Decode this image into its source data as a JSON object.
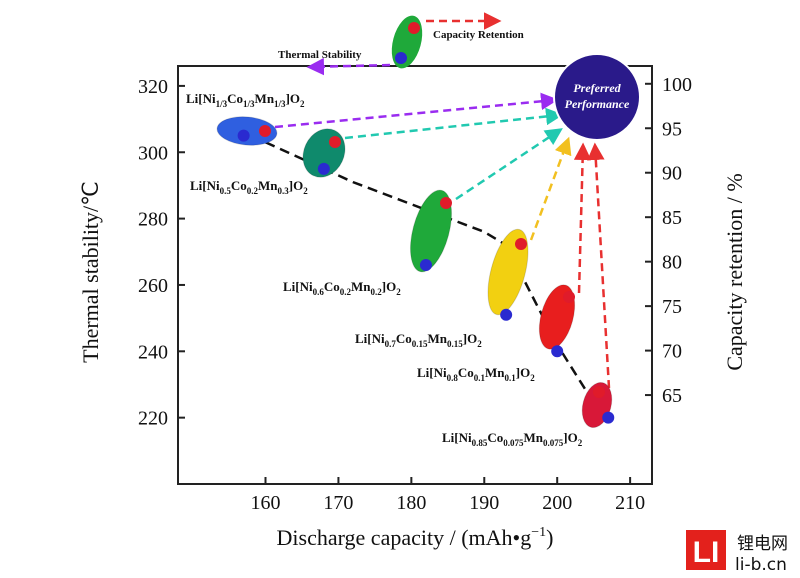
{
  "chart_data": {
    "type": "scatter",
    "title": "",
    "xlabel": "Discharge capacity / (mAh•g",
    "xlabel_sup": "−1",
    "xlabel_close": ")",
    "ylabel_left": "Thermal stability/℃",
    "ylabel_right": "Capacity retention / %",
    "xlim": [
      148,
      213
    ],
    "ylim_left": [
      200,
      326
    ],
    "ylim_right": [
      55,
      102
    ],
    "xticks": [
      160,
      170,
      180,
      190,
      200,
      210
    ],
    "yticks_left": [
      220,
      240,
      260,
      280,
      300,
      320
    ],
    "yticks_right": [
      65,
      70,
      75,
      80,
      85,
      90,
      95,
      100
    ],
    "materials": [
      {
        "parts": [
          "Li[Ni",
          "1/3",
          "Co",
          "1/3",
          "Mn",
          "1/3",
          "]O",
          "2",
          ""
        ],
        "capacity": 157,
        "thermal_stability": 305,
        "capacity_retention": 95,
        "color": "#2f5fe0"
      },
      {
        "parts": [
          "Li[Ni",
          "0.5",
          "Co",
          "0.2",
          "Mn",
          "0.3",
          "]O",
          "2",
          ""
        ],
        "capacity": 168,
        "thermal_stability": 295,
        "capacity_retention": 94,
        "color": "#0f8a6c"
      },
      {
        "parts": [
          "Li[Ni",
          "0.6",
          "Co",
          "0.2",
          "Mn",
          "0.2",
          "]O",
          "2",
          ""
        ],
        "capacity": 182,
        "thermal_stability": 266,
        "capacity_retention": 89,
        "color": "#1fa93a"
      },
      {
        "parts": [
          "Li[Ni",
          "0.7",
          "Co",
          "0.15",
          "Mn",
          "0.15",
          "]O",
          "2",
          ""
        ],
        "capacity": 193,
        "thermal_stability": 251,
        "capacity_retention": 85,
        "color": "#f2d011"
      },
      {
        "parts": [
          "Li[Ni",
          "0.8",
          "Co",
          "0.1",
          "Mn",
          "0.1",
          "]O",
          "2",
          ""
        ],
        "capacity": 200,
        "thermal_stability": 240,
        "capacity_retention": 78,
        "color": "#e81e1e"
      },
      {
        "parts": [
          "Li[Ni",
          "0.85",
          "Co",
          "0.075",
          "Mn",
          "0.075",
          "]O",
          "2",
          ""
        ],
        "capacity": 207,
        "thermal_stability": 220,
        "capacity_retention": 71,
        "color": "#d81838"
      }
    ],
    "trend_line": [
      [
        156,
        307
      ],
      [
        172,
        291
      ],
      [
        190,
        276
      ],
      [
        193,
        272
      ],
      [
        200,
        242
      ],
      [
        206,
        221
      ]
    ],
    "preferred_label_line1": "Preferred",
    "preferred_label_line2": "Performance",
    "legend": {
      "capacity_retention": "Capacity Retention",
      "thermal_stability": "Thermal Stability"
    },
    "colors": {
      "blue_marker": "#2a2ad0",
      "red_marker": "#e01b2a",
      "preferred": "#2a1a8a",
      "arrow_purple": "#9a2cf0",
      "arrow_cyan": "#21c9b0",
      "arrow_yellow": "#f2c020",
      "arrow_red": "#e83030"
    }
  },
  "watermark": {
    "logo": "LI",
    "line1": "锂电网",
    "line2": "li-b.cn"
  }
}
